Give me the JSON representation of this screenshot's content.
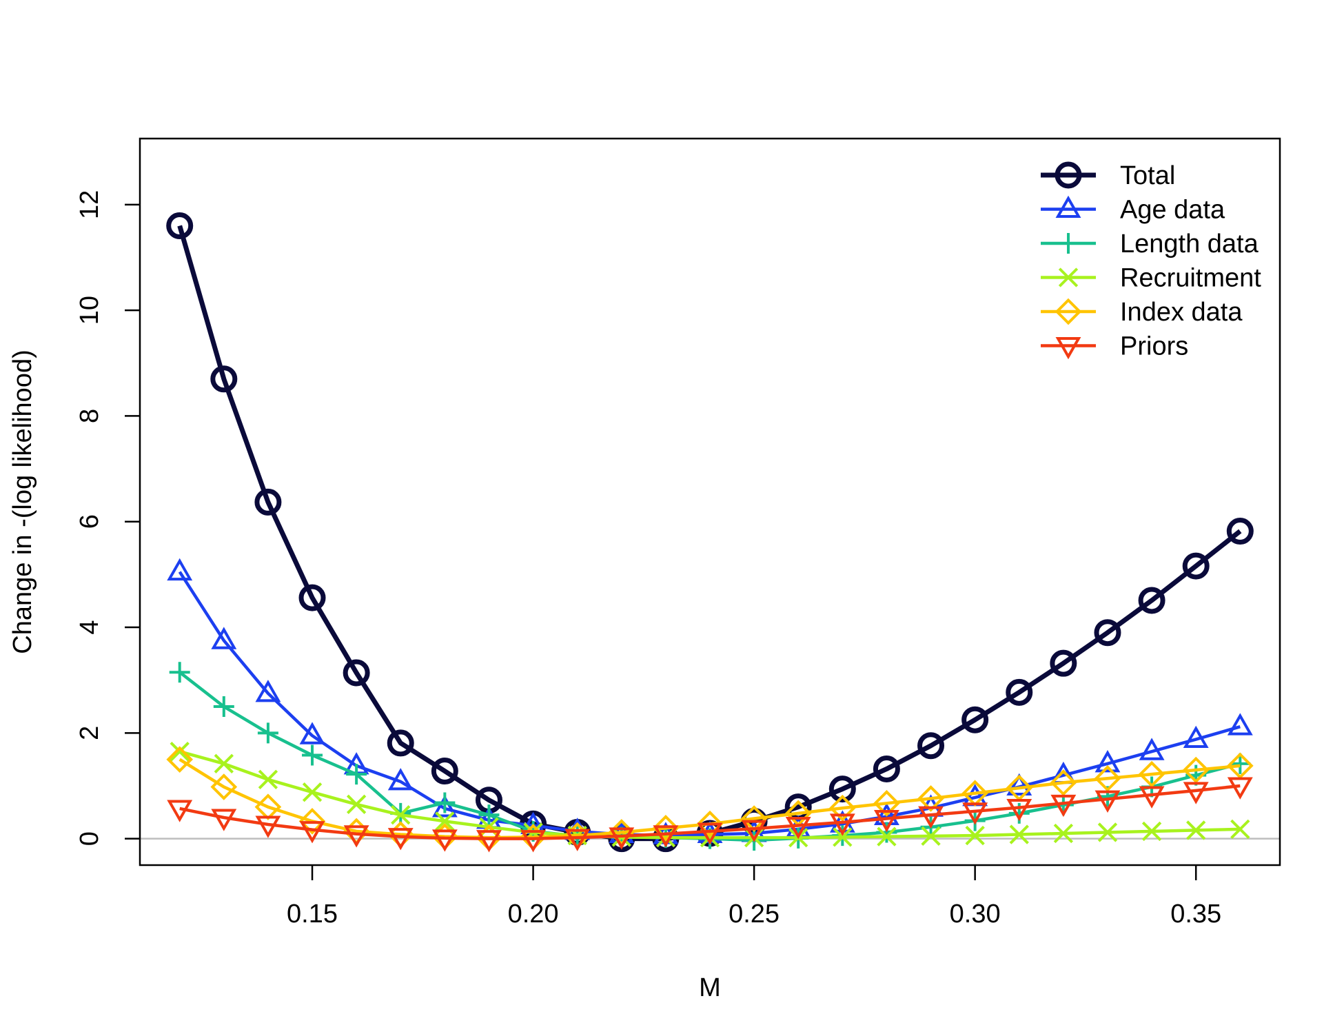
{
  "chart_data": {
    "type": "line",
    "xlabel": "M",
    "ylabel": "Change in -(log likelihood)",
    "xlim": [
      0.111,
      0.369
    ],
    "ylim": [
      -0.5,
      13.25
    ],
    "x_ticks": [
      0.15,
      0.2,
      0.25,
      0.3,
      0.35
    ],
    "x_tick_labels": [
      "0.15",
      "0.20",
      "0.25",
      "0.30",
      "0.35"
    ],
    "y_ticks": [
      0,
      2,
      4,
      6,
      8,
      10,
      12
    ],
    "y_tick_labels": [
      "0",
      "2",
      "4",
      "6",
      "8",
      "10",
      "12"
    ],
    "reference_line_y": 0,
    "legend_position": "top-right",
    "x": [
      0.12,
      0.13,
      0.14,
      0.15,
      0.16,
      0.17,
      0.18,
      0.19,
      0.2,
      0.21,
      0.22,
      0.23,
      0.24,
      0.25,
      0.26,
      0.27,
      0.28,
      0.29,
      0.3,
      0.31,
      0.32,
      0.33,
      0.34,
      0.35,
      0.36
    ],
    "series": [
      {
        "name": "Total",
        "color": "#0a0a3a",
        "marker": "circle",
        "values": [
          11.6,
          8.7,
          6.37,
          4.56,
          3.14,
          1.81,
          1.28,
          0.73,
          0.28,
          0.12,
          0.0,
          0.0,
          0.1,
          0.33,
          0.6,
          0.94,
          1.32,
          1.76,
          2.25,
          2.77,
          3.32,
          3.9,
          4.51,
          5.16,
          5.82
        ]
      },
      {
        "name": "Age data",
        "color": "#1c3ff0",
        "marker": "triangle-up",
        "values": [
          5.05,
          3.75,
          2.75,
          1.95,
          1.38,
          1.08,
          0.57,
          0.35,
          0.25,
          0.14,
          0.08,
          0.06,
          0.08,
          0.1,
          0.18,
          0.28,
          0.42,
          0.58,
          0.78,
          0.98,
          1.2,
          1.42,
          1.65,
          1.88,
          2.12
        ]
      },
      {
        "name": "Length data",
        "color": "#18c08e",
        "marker": "plus",
        "values": [
          3.15,
          2.5,
          2.0,
          1.58,
          1.22,
          0.48,
          0.68,
          0.45,
          0.14,
          0.05,
          0.03,
          0.02,
          0.0,
          -0.03,
          0.01,
          0.06,
          0.12,
          0.22,
          0.34,
          0.48,
          0.64,
          0.8,
          0.98,
          1.2,
          1.42
        ]
      },
      {
        "name": "Recruitment",
        "color": "#a8f21e",
        "marker": "cross",
        "values": [
          1.65,
          1.42,
          1.12,
          0.88,
          0.65,
          0.45,
          0.33,
          0.22,
          0.12,
          0.06,
          0.03,
          0.02,
          0.02,
          0.02,
          0.02,
          0.03,
          0.04,
          0.05,
          0.06,
          0.08,
          0.1,
          0.12,
          0.14,
          0.16,
          0.18
        ]
      },
      {
        "name": "Index data",
        "color": "#ffc400",
        "marker": "diamond",
        "values": [
          1.5,
          0.98,
          0.6,
          0.33,
          0.14,
          0.08,
          0.04,
          0.02,
          0.03,
          0.06,
          0.12,
          0.2,
          0.28,
          0.38,
          0.48,
          0.58,
          0.67,
          0.76,
          0.86,
          0.96,
          1.06,
          1.14,
          1.22,
          1.3,
          1.38
        ]
      },
      {
        "name": "Priors",
        "color": "#f23a12",
        "marker": "triangle-down",
        "values": [
          0.57,
          0.4,
          0.27,
          0.17,
          0.09,
          0.04,
          0.01,
          0.0,
          0.0,
          0.02,
          0.05,
          0.09,
          0.14,
          0.19,
          0.25,
          0.31,
          0.38,
          0.45,
          0.52,
          0.59,
          0.67,
          0.75,
          0.83,
          0.91,
          1.0
        ]
      }
    ]
  }
}
